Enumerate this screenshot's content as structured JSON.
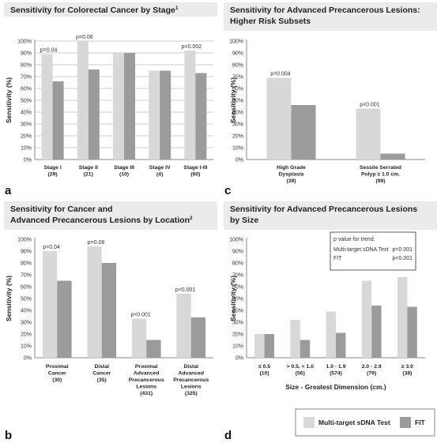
{
  "colors": {
    "mt_sdna": "#d8d8d8",
    "fit": "#9b9b9b",
    "title_bg": "#ebebeb"
  },
  "legend": {
    "items": [
      {
        "label": "Multi-target sDNA Test"
      },
      {
        "label": "FIT"
      }
    ]
  },
  "chart_data": [
    {
      "type": "bar",
      "panel": "a",
      "title": "Sensitivity for Colorectal Cancer by Stage",
      "title_sup": "1",
      "ylabel": "Sensitivity (%)",
      "xlabel": "",
      "ylim": [
        0,
        100
      ],
      "yticks": [
        "0%",
        "10%",
        "20%",
        "30%",
        "40%",
        "50%",
        "60%",
        "70%",
        "80%",
        "90%",
        "100%"
      ],
      "grid": true,
      "categories": [
        [
          "Stage I",
          "(29)"
        ],
        [
          "Stage II",
          "(21)"
        ],
        [
          "Stage III",
          "(10)"
        ],
        [
          "Stage IV",
          "(4)"
        ],
        [
          "Stage I-III",
          "(60)"
        ]
      ],
      "series": [
        {
          "name": "Multi-target sDNA Test",
          "values": [
            89,
            100,
            90,
            75,
            92
          ]
        },
        {
          "name": "FIT",
          "values": [
            66,
            76,
            90,
            75,
            73
          ]
        }
      ],
      "annotations": [
        "p=0.04",
        "p=0.06",
        "",
        "",
        "p=0.002"
      ]
    },
    {
      "type": "bar",
      "panel": "c",
      "title": [
        "Sensitivity for Advanced Precancerous Lesions:",
        "Higher Risk Subsets"
      ],
      "ylabel": "Sensitivity (%)",
      "xlabel": "",
      "ylim": [
        0,
        100
      ],
      "yticks": [
        "0%",
        "10%",
        "20%",
        "30%",
        "40%",
        "50%",
        "60%",
        "70%",
        "80%",
        "90%",
        "100%"
      ],
      "grid": false,
      "categories": [
        [
          "High Grade",
          "Dysplasia",
          "(39)"
        ],
        [
          "Sessile Serrated",
          "Polyp ≥ 1.0 cm.",
          "(99)"
        ]
      ],
      "series": [
        {
          "name": "Multi-target sDNA Test",
          "values": [
            69,
            43
          ]
        },
        {
          "name": "FIT",
          "values": [
            46,
            5
          ]
        }
      ],
      "annotations": [
        "p=0.004",
        "p<0.001"
      ]
    },
    {
      "type": "bar",
      "panel": "b",
      "title": [
        "Sensitivity for Cancer and",
        "Advanced Precancerous Lesions by Location"
      ],
      "title_sup": "2",
      "ylabel": "Sensitivity (%)",
      "xlabel": "",
      "ylim": [
        0,
        100
      ],
      "yticks": [
        "0%",
        "10%",
        "20%",
        "30%",
        "40%",
        "50%",
        "60%",
        "70%",
        "80%",
        "90%",
        "100%"
      ],
      "grid": false,
      "categories": [
        [
          "Proximal",
          "Cancer",
          "(30)"
        ],
        [
          "Distal",
          "Cancer",
          "(35)"
        ],
        [
          "Proximal",
          "Advanced",
          "Precancerous",
          "Lesions",
          "(431)"
        ],
        [
          "Distal",
          "Advanced",
          "Precancerous",
          "Lesions",
          "(325)"
        ]
      ],
      "series": [
        {
          "name": "Multi-target sDNA Test",
          "values": [
            90,
            94,
            33,
            54
          ]
        },
        {
          "name": "FIT",
          "values": [
            65,
            80,
            15,
            34
          ]
        }
      ],
      "annotations": [
        "p=0.04",
        "p=0.06",
        "p<0.001",
        "p<0.001"
      ]
    },
    {
      "type": "bar",
      "panel": "d",
      "title": [
        "Sensitivity for Advanced Precancerous Lesions",
        "by Size"
      ],
      "ylabel": "Sensitivity (%)",
      "xlabel": "Size - Greatest Dimension (cm.)",
      "ylim": [
        0,
        100
      ],
      "yticks": [
        "0%",
        "10%",
        "20%",
        "30%",
        "40%",
        "50%",
        "60%",
        "70%",
        "80%",
        "90%",
        "100%"
      ],
      "grid": false,
      "categories": [
        [
          "≤ 0.5",
          "(10)"
        ],
        [
          "> 0.5, < 1.0",
          "(56)"
        ],
        [
          "1.0 - 1.9",
          "(574)"
        ],
        [
          "2.0 - 2.9",
          "(79)"
        ],
        [
          "≥ 3.0",
          "(38)"
        ]
      ],
      "series": [
        {
          "name": "Multi-target sDNA Test",
          "values": [
            20,
            32,
            39,
            65,
            68
          ]
        },
        {
          "name": "FIT",
          "values": [
            20,
            15,
            21,
            44,
            43
          ]
        }
      ],
      "annotations": [
        "",
        "",
        "",
        "",
        ""
      ],
      "trend_box": {
        "header": "p value for trend:",
        "rows": [
          [
            "Multi-target sDNA Test",
            "p<0.001"
          ],
          [
            "FIT",
            "p<0.001"
          ]
        ]
      }
    }
  ]
}
